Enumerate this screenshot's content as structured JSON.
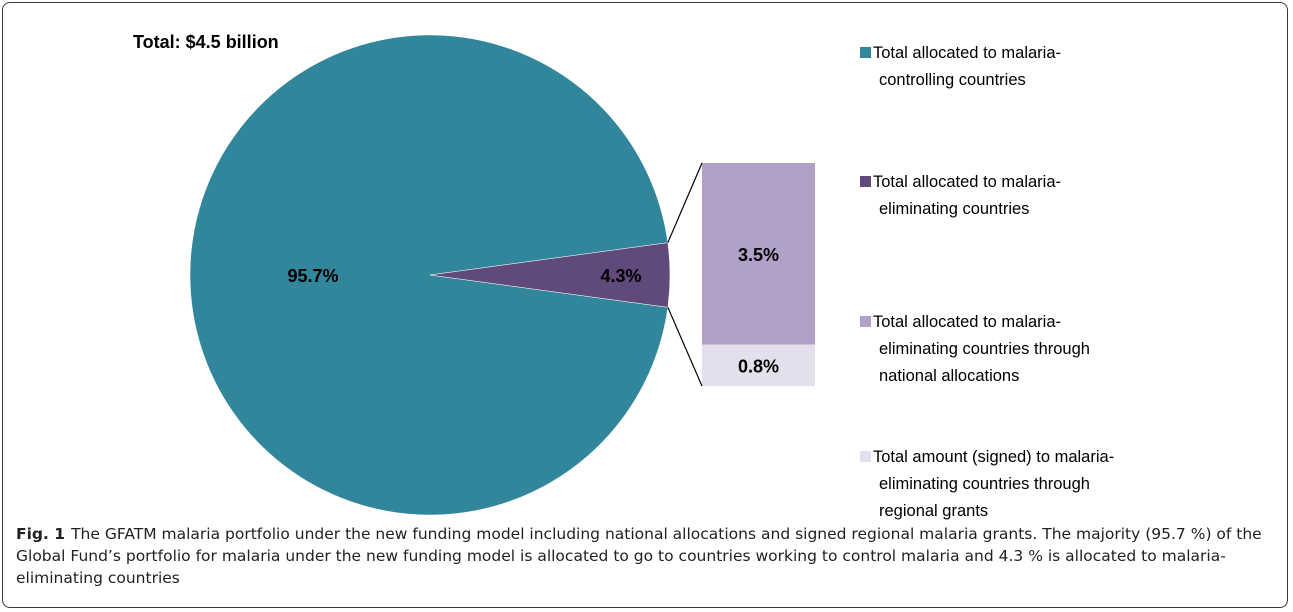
{
  "chart_data": {
    "type": "pie",
    "title": "Total: $4.5 billion",
    "slices": [
      {
        "label": "Total allocated to malaria-controlling countries",
        "value": 95.7,
        "display": "95.7%",
        "color": "#31869b"
      },
      {
        "label": "Total allocated to  malaria-eliminating countries",
        "value": 4.3,
        "display": "4.3%",
        "color": "#604a7b"
      }
    ],
    "breakdown": {
      "of": "Total allocated to  malaria-eliminating countries",
      "segments": [
        {
          "label": "Total allocated to malaria-eliminating countries through national allocations",
          "value": 3.5,
          "display": "3.5%",
          "color": "#b1a0c7"
        },
        {
          "label": "Total amount (signed) to malaria-eliminating countries through regional grants",
          "value": 0.8,
          "display": "0.8%",
          "color": "#e4dfec"
        }
      ]
    },
    "legend": [
      {
        "lines": [
          "Total allocated to malaria-",
          "controlling countries"
        ],
        "color": "#31869b"
      },
      {
        "lines": [
          "Total allocated to  malaria-",
          "eliminating countries"
        ],
        "color": "#604a7b"
      },
      {
        "lines": [
          "Total allocated to malaria-",
          "eliminating countries through",
          "national allocations"
        ],
        "color": "#b1a0c7"
      },
      {
        "lines": [
          "Total amount (signed) to malaria-",
          "eliminating countries through",
          "regional grants"
        ],
        "color": "#e4dfec"
      }
    ],
    "legend_position": "right"
  },
  "caption": {
    "label": "Fig. 1",
    "text": "The GFATM malaria portfolio under the new funding model including national allocations and signed regional malaria grants. The majority (95.7 %) of the Global Fund’s portfolio for malaria under the new funding model is allocated to go to countries working to control malaria and 4.3 % is allocated to malaria-eliminating countries"
  }
}
